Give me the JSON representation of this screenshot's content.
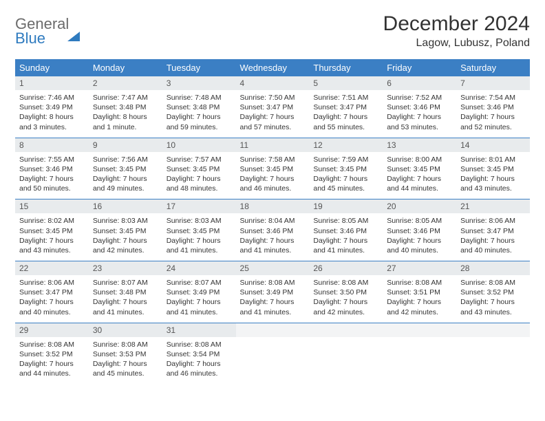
{
  "brand": {
    "part1": "General",
    "part2": "Blue"
  },
  "title": "December 2024",
  "location": "Lagow, Lubusz, Poland",
  "colors": {
    "header_bg": "#3b7fc4",
    "header_text": "#ffffff",
    "daynum_bg": "#e8ebed",
    "border": "#3b7fc4",
    "body_text": "#333333",
    "logo_gray": "#6b6b6b",
    "logo_blue": "#2f7bbf"
  },
  "day_names": [
    "Sunday",
    "Monday",
    "Tuesday",
    "Wednesday",
    "Thursday",
    "Friday",
    "Saturday"
  ],
  "weeks": [
    [
      {
        "n": "1",
        "sr": "7:46 AM",
        "ss": "3:49 PM",
        "dl": "8 hours and 3 minutes."
      },
      {
        "n": "2",
        "sr": "7:47 AM",
        "ss": "3:48 PM",
        "dl": "8 hours and 1 minute."
      },
      {
        "n": "3",
        "sr": "7:48 AM",
        "ss": "3:48 PM",
        "dl": "7 hours and 59 minutes."
      },
      {
        "n": "4",
        "sr": "7:50 AM",
        "ss": "3:47 PM",
        "dl": "7 hours and 57 minutes."
      },
      {
        "n": "5",
        "sr": "7:51 AM",
        "ss": "3:47 PM",
        "dl": "7 hours and 55 minutes."
      },
      {
        "n": "6",
        "sr": "7:52 AM",
        "ss": "3:46 PM",
        "dl": "7 hours and 53 minutes."
      },
      {
        "n": "7",
        "sr": "7:54 AM",
        "ss": "3:46 PM",
        "dl": "7 hours and 52 minutes."
      }
    ],
    [
      {
        "n": "8",
        "sr": "7:55 AM",
        "ss": "3:46 PM",
        "dl": "7 hours and 50 minutes."
      },
      {
        "n": "9",
        "sr": "7:56 AM",
        "ss": "3:45 PM",
        "dl": "7 hours and 49 minutes."
      },
      {
        "n": "10",
        "sr": "7:57 AM",
        "ss": "3:45 PM",
        "dl": "7 hours and 48 minutes."
      },
      {
        "n": "11",
        "sr": "7:58 AM",
        "ss": "3:45 PM",
        "dl": "7 hours and 46 minutes."
      },
      {
        "n": "12",
        "sr": "7:59 AM",
        "ss": "3:45 PM",
        "dl": "7 hours and 45 minutes."
      },
      {
        "n": "13",
        "sr": "8:00 AM",
        "ss": "3:45 PM",
        "dl": "7 hours and 44 minutes."
      },
      {
        "n": "14",
        "sr": "8:01 AM",
        "ss": "3:45 PM",
        "dl": "7 hours and 43 minutes."
      }
    ],
    [
      {
        "n": "15",
        "sr": "8:02 AM",
        "ss": "3:45 PM",
        "dl": "7 hours and 43 minutes."
      },
      {
        "n": "16",
        "sr": "8:03 AM",
        "ss": "3:45 PM",
        "dl": "7 hours and 42 minutes."
      },
      {
        "n": "17",
        "sr": "8:03 AM",
        "ss": "3:45 PM",
        "dl": "7 hours and 41 minutes."
      },
      {
        "n": "18",
        "sr": "8:04 AM",
        "ss": "3:46 PM",
        "dl": "7 hours and 41 minutes."
      },
      {
        "n": "19",
        "sr": "8:05 AM",
        "ss": "3:46 PM",
        "dl": "7 hours and 41 minutes."
      },
      {
        "n": "20",
        "sr": "8:05 AM",
        "ss": "3:46 PM",
        "dl": "7 hours and 40 minutes."
      },
      {
        "n": "21",
        "sr": "8:06 AM",
        "ss": "3:47 PM",
        "dl": "7 hours and 40 minutes."
      }
    ],
    [
      {
        "n": "22",
        "sr": "8:06 AM",
        "ss": "3:47 PM",
        "dl": "7 hours and 40 minutes."
      },
      {
        "n": "23",
        "sr": "8:07 AM",
        "ss": "3:48 PM",
        "dl": "7 hours and 41 minutes."
      },
      {
        "n": "24",
        "sr": "8:07 AM",
        "ss": "3:49 PM",
        "dl": "7 hours and 41 minutes."
      },
      {
        "n": "25",
        "sr": "8:08 AM",
        "ss": "3:49 PM",
        "dl": "7 hours and 41 minutes."
      },
      {
        "n": "26",
        "sr": "8:08 AM",
        "ss": "3:50 PM",
        "dl": "7 hours and 42 minutes."
      },
      {
        "n": "27",
        "sr": "8:08 AM",
        "ss": "3:51 PM",
        "dl": "7 hours and 42 minutes."
      },
      {
        "n": "28",
        "sr": "8:08 AM",
        "ss": "3:52 PM",
        "dl": "7 hours and 43 minutes."
      }
    ],
    [
      {
        "n": "29",
        "sr": "8:08 AM",
        "ss": "3:52 PM",
        "dl": "7 hours and 44 minutes."
      },
      {
        "n": "30",
        "sr": "8:08 AM",
        "ss": "3:53 PM",
        "dl": "7 hours and 45 minutes."
      },
      {
        "n": "31",
        "sr": "8:08 AM",
        "ss": "3:54 PM",
        "dl": "7 hours and 46 minutes."
      },
      null,
      null,
      null,
      null
    ]
  ],
  "labels": {
    "sunrise": "Sunrise:",
    "sunset": "Sunset:",
    "daylight": "Daylight:"
  }
}
